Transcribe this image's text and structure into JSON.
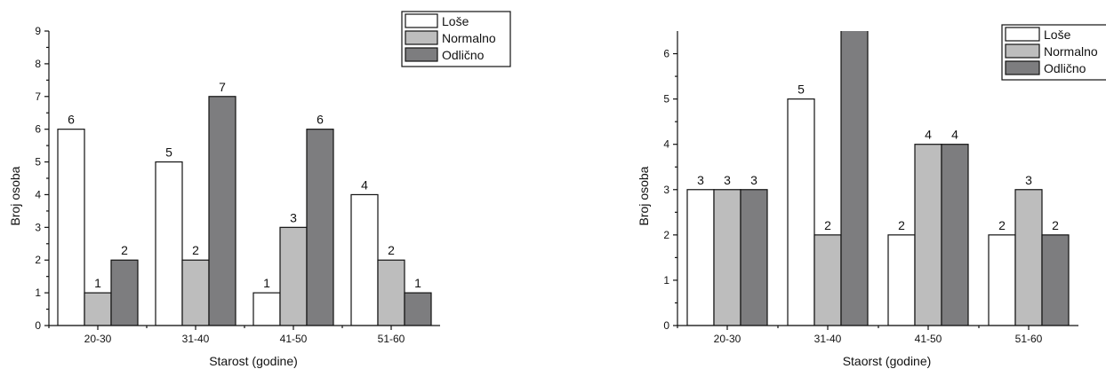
{
  "chart_data": [
    {
      "type": "bar",
      "title": "",
      "xlabel": "Starost (godine)",
      "ylabel": "Broj osoba",
      "categories": [
        "20-30",
        "31-40",
        "41-50",
        "51-60"
      ],
      "ylim": [
        0,
        9
      ],
      "yticks": [
        0,
        1,
        2,
        3,
        4,
        5,
        6,
        7,
        8,
        9
      ],
      "grid": false,
      "legend_position": "top-right",
      "series": [
        {
          "name": "Loše",
          "color": "#ffffff",
          "values": [
            6,
            5,
            1,
            4
          ]
        },
        {
          "name": "Normalno",
          "color": "#bdbdbd",
          "values": [
            1,
            2,
            3,
            2
          ]
        },
        {
          "name": "Odlično",
          "color": "#7d7d7f",
          "values": [
            2,
            7,
            6,
            1
          ]
        }
      ]
    },
    {
      "type": "bar",
      "title": "",
      "xlabel": "Staorst (godine)",
      "ylabel": "Broj osoba",
      "categories": [
        "20-30",
        "31-40",
        "41-50",
        "51-60"
      ],
      "ylim": [
        0,
        6.5
      ],
      "yticks": [
        0,
        1,
        2,
        3,
        4,
        5,
        6
      ],
      "grid": false,
      "legend_position": "top-right",
      "series": [
        {
          "name": "Loše",
          "color": "#ffffff",
          "values": [
            3,
            5,
            2,
            2
          ]
        },
        {
          "name": "Normalno",
          "color": "#bdbdbd",
          "values": [
            3,
            2,
            4,
            3
          ]
        },
        {
          "name": "Odlično",
          "color": "#7d7d7f",
          "values": [
            3,
            7,
            4,
            2
          ],
          "labels": [
            "3",
            "",
            "4",
            "2"
          ]
        }
      ]
    }
  ]
}
